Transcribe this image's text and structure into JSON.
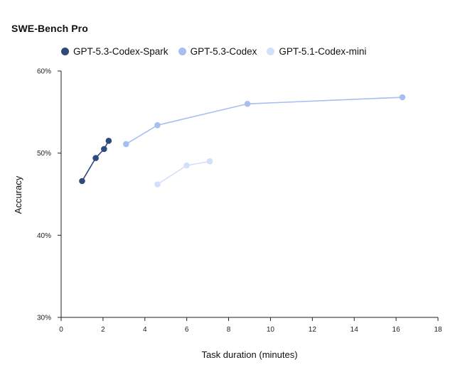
{
  "chart_data": {
    "type": "line",
    "title": "SWE-Bench Pro",
    "xlabel": "Task duration (minutes)",
    "ylabel": "Accuracy",
    "xlim": [
      0,
      18
    ],
    "ylim": [
      30,
      60
    ],
    "xticks": [
      0,
      2,
      4,
      6,
      8,
      10,
      12,
      14,
      16,
      18
    ],
    "yticks": [
      {
        "value": 30,
        "label": "30%"
      },
      {
        "value": 40,
        "label": "40%"
      },
      {
        "value": 50,
        "label": "50%"
      },
      {
        "value": 60,
        "label": "60%"
      }
    ],
    "legend_position": "top-left",
    "grid": false,
    "series": [
      {
        "name": "GPT-5.3-Codex-Spark",
        "color": "#2f4a78",
        "points": [
          {
            "x": 1.0,
            "y": 46.6
          },
          {
            "x": 1.65,
            "y": 49.4
          },
          {
            "x": 2.05,
            "y": 50.5
          },
          {
            "x": 2.27,
            "y": 51.5
          }
        ]
      },
      {
        "name": "GPT-5.3-Codex",
        "color": "#a6bff0",
        "points": [
          {
            "x": 3.1,
            "y": 51.1
          },
          {
            "x": 4.6,
            "y": 53.4
          },
          {
            "x": 8.9,
            "y": 56.0
          },
          {
            "x": 16.3,
            "y": 56.8
          }
        ]
      },
      {
        "name": "GPT-5.1-Codex-mini",
        "color": "#d2e0fb",
        "points": [
          {
            "x": 4.6,
            "y": 46.2
          },
          {
            "x": 6.0,
            "y": 48.5
          },
          {
            "x": 7.1,
            "y": 49.0
          }
        ]
      }
    ]
  }
}
